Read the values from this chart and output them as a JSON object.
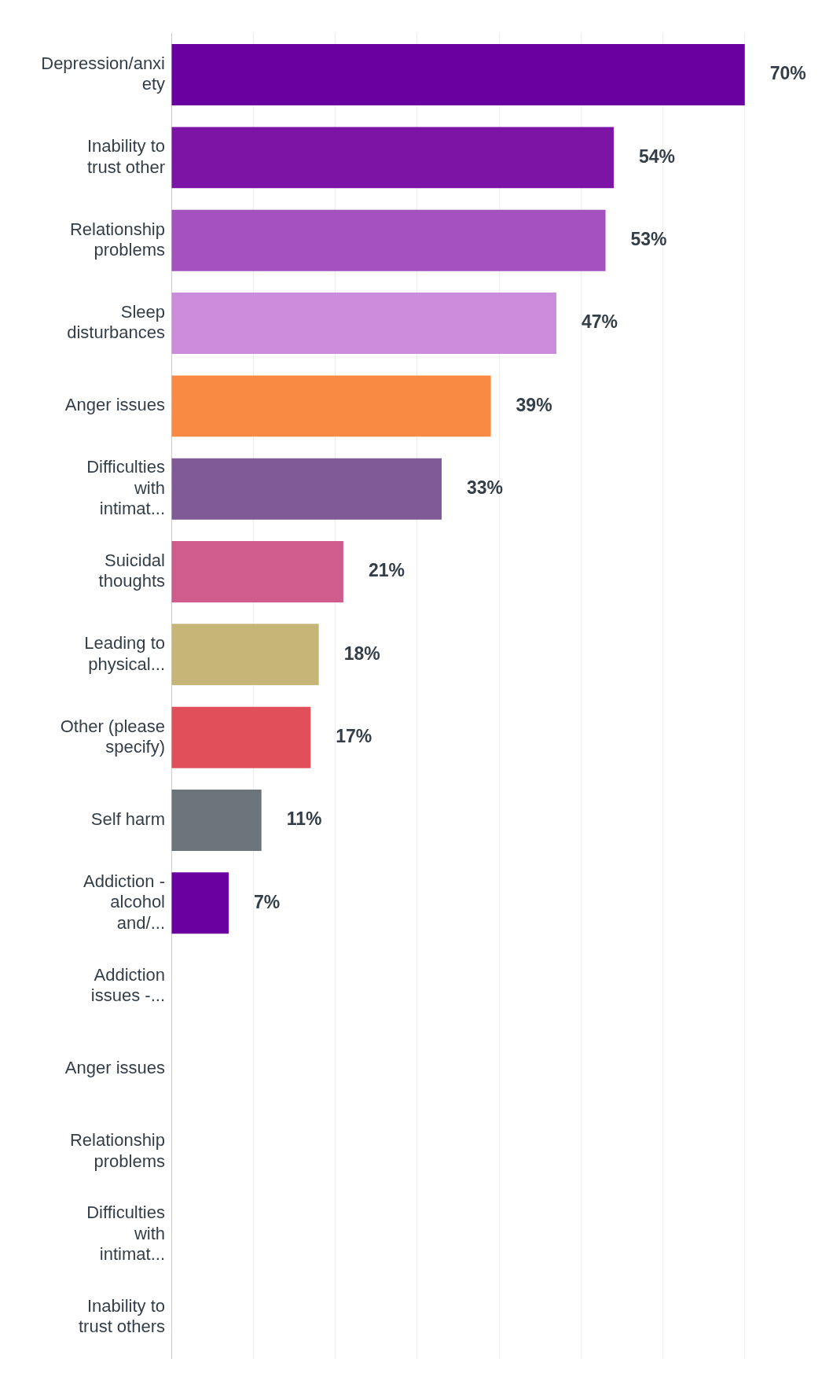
{
  "chart_data": {
    "type": "bar",
    "orientation": "horizontal",
    "categories": [
      "Depression/anxiety",
      "Inability to trust other",
      "Relationship problems",
      "Sleep disturbances",
      "Anger issues",
      "Difficulties with intimat...",
      "Suicidal thoughts",
      "Leading to physical...",
      "Other (please specify)",
      "Self harm",
      "Addiction - alcohol and/...",
      "Addiction issues -...",
      "Anger issues",
      "Relationship problems",
      "Difficulties with intimat...",
      "Inability to trust others"
    ],
    "values": [
      70,
      54,
      53,
      47,
      39,
      33,
      21,
      18,
      17,
      11,
      7,
      0,
      0,
      0,
      0,
      0
    ],
    "value_labels": [
      "70%",
      "54%",
      "53%",
      "47%",
      "39%",
      "33%",
      "21%",
      "18%",
      "17%",
      "11%",
      "7%",
      null,
      null,
      null,
      null,
      null
    ],
    "colors": [
      "#6b00a0",
      "#7c14a6",
      "#a552bf",
      "#cc8cdb",
      "#f98a43",
      "#7f5a96",
      "#cf5c8d",
      "#c5b677",
      "#e1505a",
      "#6b747b",
      "#6b00a0",
      "#6b00a0",
      "#f98a43",
      "#a552bf",
      "#7f5a96",
      "#7c14a6"
    ],
    "xticks": [
      {
        "value": 0,
        "label": null
      },
      {
        "value": 10,
        "label": null
      },
      {
        "value": 20,
        "label": null
      },
      {
        "value": 30,
        "label": null
      },
      {
        "value": 40,
        "label": null
      },
      {
        "value": 50,
        "label": null
      },
      {
        "value": 60,
        "label": null
      },
      {
        "value": 70,
        "label": null
      }
    ],
    "grid": "x",
    "tick_labels": "y"
  }
}
